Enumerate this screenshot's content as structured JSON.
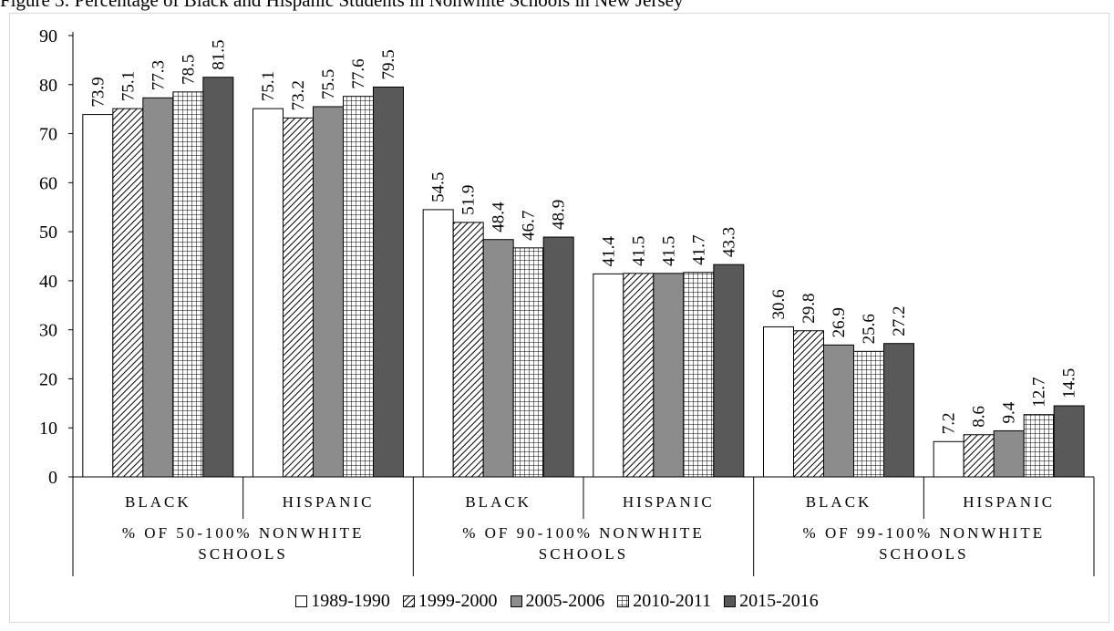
{
  "title": "Figure 3: Percentage of Black and Hispanic Students in Nonwhite Schools in New Jersey",
  "chart_data": {
    "type": "bar",
    "groups": [
      {
        "label": "% OF 50-100% NONWHITE SCHOOLS",
        "categories": [
          "BLACK",
          "HISPANIC"
        ]
      },
      {
        "label": "% OF 90-100% NONWHITE SCHOOLS",
        "categories": [
          "BLACK",
          "HISPANIC"
        ]
      },
      {
        "label": "% OF 99-100% NONWHITE SCHOOLS",
        "categories": [
          "BLACK",
          "HISPANIC"
        ]
      }
    ],
    "series": [
      {
        "name": "1989-1990",
        "values": [
          73.9,
          75.1,
          54.5,
          41.4,
          30.6,
          7.2
        ],
        "pattern": "white"
      },
      {
        "name": "1999-2000",
        "values": [
          75.1,
          73.2,
          51.9,
          41.5,
          29.8,
          8.6
        ],
        "pattern": "diagonal"
      },
      {
        "name": "2005-2006",
        "values": [
          77.3,
          75.5,
          48.4,
          41.5,
          26.9,
          9.4
        ],
        "pattern": "gray"
      },
      {
        "name": "2010-2011",
        "values": [
          78.5,
          77.6,
          46.7,
          41.7,
          25.6,
          12.7
        ],
        "pattern": "grid"
      },
      {
        "name": "2015-2016",
        "values": [
          81.5,
          79.5,
          48.9,
          43.3,
          27.2,
          14.5
        ],
        "pattern": "dark"
      }
    ],
    "yticks": [
      "0",
      "10",
      "20",
      "30",
      "40",
      "50",
      "60",
      "70",
      "80",
      "90"
    ],
    "ylim": [
      0,
      90
    ],
    "grid": false,
    "legend_position": "bottom",
    "colors": {
      "white": "#ffffff",
      "gray": "#8c8c8c",
      "dark": "#595959",
      "stroke": "#000000"
    }
  }
}
